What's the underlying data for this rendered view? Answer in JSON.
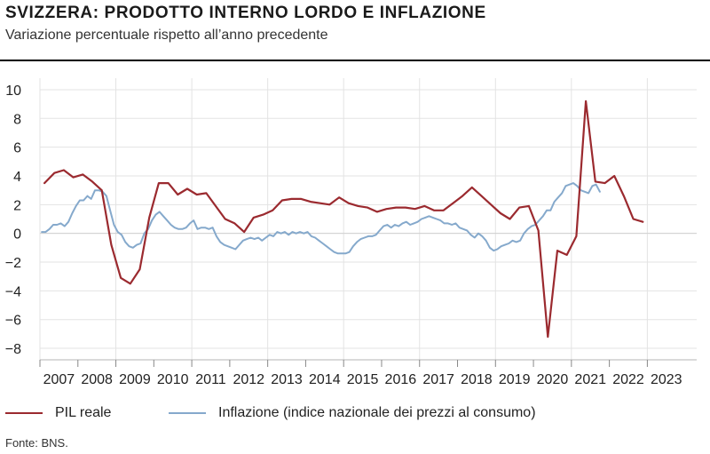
{
  "header": {
    "title": "SVIZZERA: PRODOTTO INTERNO LORDO E INFLAZIONE",
    "subtitle": "Variazione percentuale rispetto all’anno precedente"
  },
  "footer": {
    "source": "Fonte: BNS."
  },
  "chart_data": {
    "type": "line",
    "title": "SVIZZERA: PRODOTTO INTERNO LORDO E INFLAZIONE",
    "subtitle": "Variazione percentuale rispetto all’anno precedente",
    "xlabel": "",
    "ylabel": "",
    "xlim": [
      2006.5,
      2023.8
    ],
    "ylim": [
      -8.8,
      10.8
    ],
    "xticks": [
      2007,
      2008,
      2009,
      2010,
      2011,
      2012,
      2013,
      2014,
      2015,
      2016,
      2017,
      2018,
      2019,
      2020,
      2021,
      2022,
      2023
    ],
    "yticks": [
      -8,
      -6,
      -4,
      -2,
      0,
      2,
      4,
      6,
      8,
      10
    ],
    "grid": true,
    "legend_position": "bottom",
    "series": [
      {
        "name": "PIL reale",
        "color": "#9b2a2f",
        "points": [
          [
            2006.62,
            3.5
          ],
          [
            2006.88,
            4.2
          ],
          [
            2007.13,
            4.4
          ],
          [
            2007.38,
            3.9
          ],
          [
            2007.63,
            4.1
          ],
          [
            2007.88,
            3.6
          ],
          [
            2008.13,
            3.0
          ],
          [
            2008.38,
            -0.8
          ],
          [
            2008.63,
            -3.1
          ],
          [
            2008.88,
            -3.5
          ],
          [
            2009.13,
            -2.5
          ],
          [
            2009.38,
            1.1
          ],
          [
            2009.63,
            3.5
          ],
          [
            2009.88,
            3.5
          ],
          [
            2010.13,
            2.7
          ],
          [
            2010.38,
            3.1
          ],
          [
            2010.63,
            2.7
          ],
          [
            2010.88,
            2.8
          ],
          [
            2011.13,
            1.9
          ],
          [
            2011.38,
            1.0
          ],
          [
            2011.63,
            0.7
          ],
          [
            2011.88,
            0.1
          ],
          [
            2012.13,
            1.1
          ],
          [
            2012.38,
            1.3
          ],
          [
            2012.63,
            1.6
          ],
          [
            2012.88,
            2.3
          ],
          [
            2013.13,
            2.4
          ],
          [
            2013.38,
            2.4
          ],
          [
            2013.63,
            2.2
          ],
          [
            2013.88,
            2.1
          ],
          [
            2014.13,
            2.0
          ],
          [
            2014.38,
            2.5
          ],
          [
            2014.63,
            2.1
          ],
          [
            2014.88,
            1.9
          ],
          [
            2015.13,
            1.8
          ],
          [
            2015.38,
            1.5
          ],
          [
            2015.63,
            1.7
          ],
          [
            2015.88,
            1.8
          ],
          [
            2016.13,
            1.8
          ],
          [
            2016.38,
            1.7
          ],
          [
            2016.63,
            1.9
          ],
          [
            2016.88,
            1.6
          ],
          [
            2017.13,
            1.6
          ],
          [
            2017.38,
            2.1
          ],
          [
            2017.63,
            2.6
          ],
          [
            2017.88,
            3.2
          ],
          [
            2018.13,
            2.6
          ],
          [
            2018.38,
            2.0
          ],
          [
            2018.63,
            1.4
          ],
          [
            2018.88,
            1.0
          ],
          [
            2019.13,
            1.8
          ],
          [
            2019.38,
            1.9
          ],
          [
            2019.63,
            0.2
          ],
          [
            2019.88,
            -7.2
          ],
          [
            2020.13,
            -1.2
          ],
          [
            2020.38,
            -1.5
          ],
          [
            2020.63,
            -0.2
          ],
          [
            2020.88,
            9.2
          ],
          [
            2021.13,
            3.6
          ],
          [
            2021.38,
            3.5
          ],
          [
            2021.63,
            4.0
          ],
          [
            2021.88,
            2.6
          ],
          [
            2022.13,
            1.0
          ],
          [
            2022.38,
            0.8
          ]
        ]
      },
      {
        "name": "Inflazione (indice nazionale dei prezzi al consumo)",
        "color": "#85a9cc",
        "points": [
          [
            2006.55,
            0.1
          ],
          [
            2006.65,
            0.1
          ],
          [
            2006.75,
            0.3
          ],
          [
            2006.85,
            0.6
          ],
          [
            2006.95,
            0.6
          ],
          [
            2007.05,
            0.7
          ],
          [
            2007.15,
            0.5
          ],
          [
            2007.25,
            0.8
          ],
          [
            2007.35,
            1.4
          ],
          [
            2007.45,
            1.9
          ],
          [
            2007.55,
            2.3
          ],
          [
            2007.65,
            2.3
          ],
          [
            2007.75,
            2.6
          ],
          [
            2007.85,
            2.4
          ],
          [
            2007.95,
            3.0
          ],
          [
            2008.05,
            3.0
          ],
          [
            2008.15,
            2.9
          ],
          [
            2008.25,
            2.6
          ],
          [
            2008.35,
            1.6
          ],
          [
            2008.45,
            0.6
          ],
          [
            2008.55,
            0.1
          ],
          [
            2008.65,
            -0.1
          ],
          [
            2008.75,
            -0.6
          ],
          [
            2008.85,
            -0.9
          ],
          [
            2008.95,
            -1.0
          ],
          [
            2009.05,
            -0.8
          ],
          [
            2009.15,
            -0.7
          ],
          [
            2009.25,
            0.0
          ],
          [
            2009.35,
            0.3
          ],
          [
            2009.45,
            0.9
          ],
          [
            2009.55,
            1.3
          ],
          [
            2009.65,
            1.5
          ],
          [
            2009.75,
            1.2
          ],
          [
            2009.85,
            0.9
          ],
          [
            2009.95,
            0.6
          ],
          [
            2010.05,
            0.4
          ],
          [
            2010.15,
            0.3
          ],
          [
            2010.25,
            0.3
          ],
          [
            2010.35,
            0.4
          ],
          [
            2010.45,
            0.7
          ],
          [
            2010.55,
            0.9
          ],
          [
            2010.65,
            0.3
          ],
          [
            2010.75,
            0.4
          ],
          [
            2010.85,
            0.4
          ],
          [
            2010.95,
            0.3
          ],
          [
            2011.05,
            0.4
          ],
          [
            2011.15,
            -0.2
          ],
          [
            2011.25,
            -0.6
          ],
          [
            2011.35,
            -0.8
          ],
          [
            2011.45,
            -0.9
          ],
          [
            2011.55,
            -1.0
          ],
          [
            2011.65,
            -1.1
          ],
          [
            2011.75,
            -0.8
          ],
          [
            2011.85,
            -0.5
          ],
          [
            2011.95,
            -0.4
          ],
          [
            2012.05,
            -0.3
          ],
          [
            2012.15,
            -0.4
          ],
          [
            2012.25,
            -0.3
          ],
          [
            2012.35,
            -0.5
          ],
          [
            2012.45,
            -0.3
          ],
          [
            2012.55,
            -0.1
          ],
          [
            2012.65,
            -0.2
          ],
          [
            2012.75,
            0.1
          ],
          [
            2012.85,
            0.0
          ],
          [
            2012.95,
            0.1
          ],
          [
            2013.05,
            -0.1
          ],
          [
            2013.15,
            0.1
          ],
          [
            2013.25,
            0.0
          ],
          [
            2013.35,
            0.1
          ],
          [
            2013.45,
            0.0
          ],
          [
            2013.55,
            0.1
          ],
          [
            2013.65,
            -0.2
          ],
          [
            2013.75,
            -0.3
          ],
          [
            2013.85,
            -0.5
          ],
          [
            2013.95,
            -0.7
          ],
          [
            2014.05,
            -0.9
          ],
          [
            2014.15,
            -1.1
          ],
          [
            2014.25,
            -1.3
          ],
          [
            2014.35,
            -1.4
          ],
          [
            2014.45,
            -1.4
          ],
          [
            2014.55,
            -1.4
          ],
          [
            2014.65,
            -1.3
          ],
          [
            2014.75,
            -0.9
          ],
          [
            2014.85,
            -0.6
          ],
          [
            2014.95,
            -0.4
          ],
          [
            2015.05,
            -0.3
          ],
          [
            2015.15,
            -0.2
          ],
          [
            2015.25,
            -0.2
          ],
          [
            2015.35,
            -0.1
          ],
          [
            2015.45,
            0.2
          ],
          [
            2015.55,
            0.5
          ],
          [
            2015.65,
            0.6
          ],
          [
            2015.75,
            0.4
          ],
          [
            2015.85,
            0.6
          ],
          [
            2015.95,
            0.5
          ],
          [
            2016.05,
            0.7
          ],
          [
            2016.15,
            0.8
          ],
          [
            2016.25,
            0.6
          ],
          [
            2016.35,
            0.7
          ],
          [
            2016.45,
            0.8
          ],
          [
            2016.55,
            1.0
          ],
          [
            2016.65,
            1.1
          ],
          [
            2016.75,
            1.2
          ],
          [
            2016.85,
            1.1
          ],
          [
            2016.95,
            1.0
          ],
          [
            2017.05,
            0.9
          ],
          [
            2017.15,
            0.7
          ],
          [
            2017.25,
            0.7
          ],
          [
            2017.35,
            0.6
          ],
          [
            2017.45,
            0.7
          ],
          [
            2017.55,
            0.4
          ],
          [
            2017.65,
            0.3
          ],
          [
            2017.75,
            0.2
          ],
          [
            2017.85,
            -0.1
          ],
          [
            2017.95,
            -0.3
          ],
          [
            2018.05,
            0.0
          ],
          [
            2018.15,
            -0.2
          ],
          [
            2018.25,
            -0.5
          ],
          [
            2018.35,
            -1.0
          ],
          [
            2018.45,
            -1.2
          ],
          [
            2018.55,
            -1.1
          ],
          [
            2018.65,
            -0.9
          ],
          [
            2018.75,
            -0.8
          ],
          [
            2018.85,
            -0.7
          ],
          [
            2018.95,
            -0.5
          ],
          [
            2019.05,
            -0.6
          ],
          [
            2019.15,
            -0.5
          ],
          [
            2019.25,
            0.0
          ],
          [
            2019.35,
            0.3
          ],
          [
            2019.45,
            0.5
          ],
          [
            2019.55,
            0.6
          ],
          [
            2019.65,
            0.9
          ],
          [
            2019.75,
            1.2
          ],
          [
            2019.85,
            1.6
          ],
          [
            2019.95,
            1.6
          ],
          [
            2020.05,
            2.2
          ],
          [
            2020.15,
            2.5
          ],
          [
            2020.25,
            2.8
          ],
          [
            2020.35,
            3.3
          ],
          [
            2020.45,
            3.4
          ],
          [
            2020.55,
            3.5
          ],
          [
            2020.65,
            3.3
          ],
          [
            2020.75,
            3.0
          ],
          [
            2020.85,
            2.9
          ],
          [
            2020.95,
            2.8
          ],
          [
            2021.05,
            3.3
          ],
          [
            2021.15,
            3.4
          ],
          [
            2021.25,
            2.9
          ]
        ]
      }
    ]
  }
}
